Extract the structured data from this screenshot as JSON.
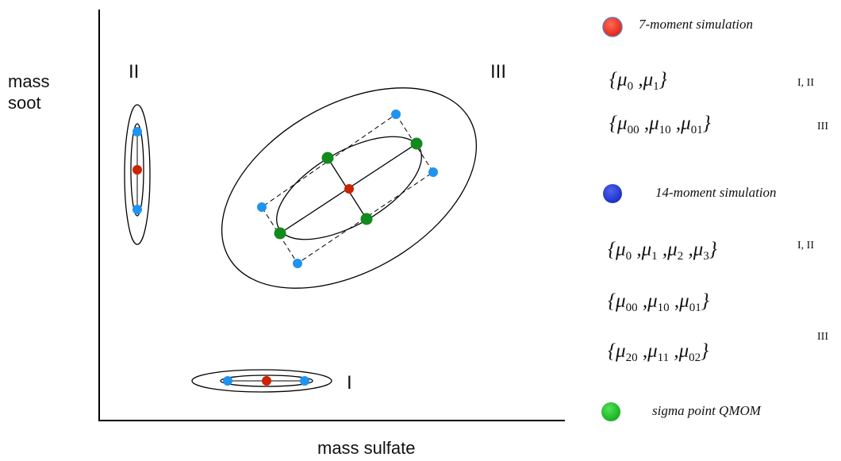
{
  "axes": {
    "x_label": "mass sulfate",
    "y_label_line1": "mass",
    "y_label_line2": "soot"
  },
  "regions": {
    "I": "I",
    "II": "II",
    "III": "III"
  },
  "colors": {
    "red": "#ee3322",
    "blue": "#2a3fd6",
    "light_blue": "#1f93f0",
    "green": "#22c029",
    "dark_red": "#cc2200",
    "dark_green": "#128a1c"
  },
  "legend": {
    "seven_moment": {
      "title": "7-moment simulation",
      "sets": [
        {
          "math": "{μ0 ,μ1}",
          "regions": "I, II"
        },
        {
          "math": "{μ00 ,μ10 ,μ01}",
          "regions": "III"
        }
      ]
    },
    "fourteen_moment": {
      "title": "14-moment simulation",
      "sets": [
        {
          "math": "{μ0 ,μ1 ,μ2 ,μ3}",
          "regions": "I, II"
        },
        {
          "math": "{μ00 ,μ10 ,μ01}",
          "regions": ""
        },
        {
          "math": "{μ20 ,μ11 ,μ02}",
          "regions": "III"
        }
      ]
    },
    "sigma_point": {
      "title": "sigma point QMOM"
    }
  }
}
